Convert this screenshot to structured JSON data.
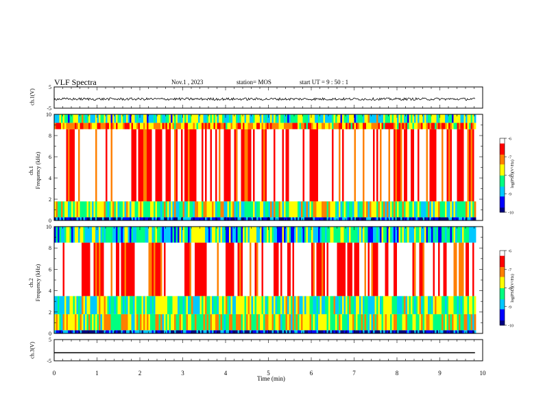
{
  "header": {
    "title": "VLF Spectra",
    "date": "Nov.1 , 2023",
    "station": "station= MOS",
    "start": "start UT = 9 : 50 : 1"
  },
  "colorbar": {
    "label": "log(PSD)(V²/Hz)",
    "ticks": [
      "-6",
      "-7",
      "-8",
      "-9",
      "-10"
    ],
    "colors": [
      "#000080",
      "#0000ff",
      "#00c8ff",
      "#00ff80",
      "#ffff00",
      "#ff8000",
      "#ff0000",
      "#ffffff"
    ]
  },
  "chart_data": [
    {
      "type": "line",
      "panel": "ch1-waveform",
      "ylabel": "ch.1(V)",
      "ylim": [
        -5,
        5
      ],
      "yticks": [
        "5",
        "-5"
      ],
      "xlim": [
        0,
        10
      ],
      "x": [
        0,
        9.82
      ],
      "y": [
        -0.7,
        -0.7
      ]
    },
    {
      "type": "heatmap",
      "panel": "ch1-spectrogram",
      "title": "ch.1",
      "ylabel": "Frequency (kHz)",
      "ylim": [
        0,
        10
      ],
      "yticks": [
        "0",
        "2",
        "4",
        "6",
        "8",
        "10"
      ],
      "xlim": [
        0,
        10
      ],
      "bands_khz": [
        [
          0,
          0.3,
          -9.5
        ],
        [
          0.3,
          1.8,
          -8.0
        ],
        [
          1.8,
          8.6,
          -6.2
        ],
        [
          8.6,
          9.2,
          -7.2
        ],
        [
          9.2,
          10,
          -8.3
        ]
      ],
      "zlim": [
        -10,
        -6
      ]
    },
    {
      "type": "heatmap",
      "panel": "ch2-spectrogram",
      "title": "ch.2",
      "ylabel": "Frequency (kHz)",
      "ylim": [
        0,
        10
      ],
      "yticks": [
        "0",
        "2",
        "4",
        "6",
        "8",
        "10"
      ],
      "xlim": [
        0,
        10
      ],
      "bands_khz": [
        [
          0,
          0.3,
          -9.5
        ],
        [
          0.3,
          1.8,
          -7.8
        ],
        [
          1.8,
          3.5,
          -8.2
        ],
        [
          3.5,
          8.5,
          -6.2
        ],
        [
          8.5,
          10,
          -8.5
        ]
      ],
      "zlim": [
        -10,
        -6
      ]
    },
    {
      "type": "line",
      "panel": "ch3-waveform",
      "ylabel": "ch.3(V)",
      "ylim": [
        -5,
        5
      ],
      "yticks": [
        "5",
        "-5"
      ],
      "xlim": [
        0,
        10
      ],
      "x": [
        0,
        9.82
      ],
      "y": [
        -1.2,
        -1.2
      ]
    }
  ],
  "xaxis": {
    "label": "Time (min)",
    "ticks": [
      "0",
      "1",
      "2",
      "3",
      "4",
      "5",
      "6",
      "7",
      "8",
      "9",
      "10"
    ]
  }
}
